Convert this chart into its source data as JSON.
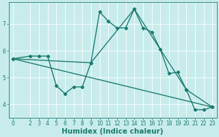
{
  "xlabel": "Humidex (Indice chaleur)",
  "ylabel": "",
  "background_color": "#c8ecec",
  "line_color": "#1a7a6e",
  "grid_color": "#ffffff",
  "xlim": [
    -0.5,
    23.5
  ],
  "ylim": [
    3.5,
    7.8
  ],
  "yticks": [
    4,
    5,
    6,
    7
  ],
  "xticks": [
    0,
    2,
    3,
    4,
    5,
    6,
    7,
    8,
    9,
    10,
    11,
    12,
    13,
    14,
    15,
    16,
    17,
    18,
    19,
    20,
    21,
    22,
    23
  ],
  "line1_x": [
    0,
    2,
    3,
    4,
    5,
    6,
    7,
    8,
    9,
    10,
    11,
    12,
    13,
    14,
    15,
    16,
    17,
    18,
    19,
    20,
    21,
    22,
    23
  ],
  "line1_y": [
    5.7,
    5.8,
    5.8,
    5.8,
    4.7,
    4.4,
    4.65,
    4.65,
    5.55,
    7.45,
    7.1,
    6.85,
    6.85,
    7.55,
    6.85,
    6.7,
    6.05,
    5.15,
    5.2,
    4.55,
    3.8,
    3.8,
    3.9
  ],
  "line2_x": [
    0,
    9,
    14,
    20,
    23
  ],
  "line2_y": [
    5.7,
    5.55,
    7.55,
    4.55,
    3.9
  ],
  "line3_x": [
    0,
    23
  ],
  "line3_y": [
    5.7,
    3.9
  ],
  "font_color": "#1a7a6e",
  "tick_labelsize": 5.5,
  "xlabel_fontsize": 7.5,
  "line_width": 1.0,
  "marker": "D",
  "marker_size": 2.2
}
